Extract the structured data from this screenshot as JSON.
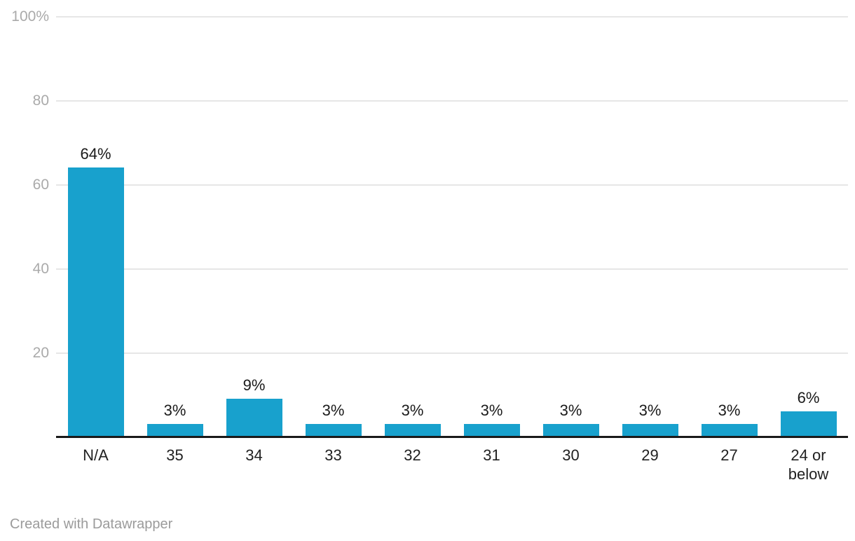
{
  "chart_data": {
    "type": "bar",
    "title": "",
    "xlabel": "",
    "ylabel": "",
    "categories": [
      "N/A",
      "35",
      "34",
      "33",
      "32",
      "31",
      "30",
      "29",
      "27",
      "24 or below"
    ],
    "values": [
      64,
      3,
      9,
      3,
      3,
      3,
      3,
      3,
      3,
      6
    ],
    "value_labels": [
      "64%",
      "3%",
      "9%",
      "3%",
      "3%",
      "3%",
      "3%",
      "3%",
      "3%",
      "6%"
    ],
    "ylim": [
      0,
      100
    ],
    "yticks": [
      {
        "value": 100,
        "label": "100%"
      },
      {
        "value": 80,
        "label": "80"
      },
      {
        "value": 60,
        "label": "60"
      },
      {
        "value": 40,
        "label": "40"
      },
      {
        "value": 20,
        "label": "20"
      }
    ],
    "grid": true,
    "legend": "none",
    "colors": {
      "bar": "#18a1cd",
      "gridline": "#e6e6e6",
      "axis_line": "#1a1a1a",
      "ytick_label": "#aaaaaa",
      "value_label": "#1a1a1a",
      "xtick_label": "#212121"
    }
  },
  "footer": {
    "attribution": "Created with Datawrapper"
  }
}
